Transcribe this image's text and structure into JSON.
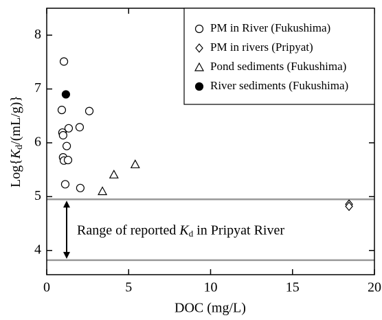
{
  "chart_data": {
    "type": "scatter",
    "x_label": "DOC (mg/L)",
    "y_label": [
      "Log{",
      "K",
      "d",
      "/(mL/g)}"
    ],
    "xlim": [
      0,
      20
    ],
    "xticks": [
      0,
      5,
      10,
      15,
      20
    ],
    "ylim": [
      3.55,
      8.5
    ],
    "yticks": [
      4,
      5,
      6,
      7,
      8
    ],
    "legend": "upper right",
    "series": [
      {
        "name": "PM in River (Fukushima)",
        "marker": "circle",
        "filled": false,
        "color": "#000000",
        "x": [
          1.05,
          0.92,
          2.6,
          0.96,
          1.0,
          1.34,
          2.01,
          1.22,
          1.0,
          1.05,
          1.3,
          1.13,
          2.05
        ],
        "y": [
          7.51,
          6.61,
          6.59,
          6.19,
          6.14,
          6.27,
          6.29,
          5.94,
          5.73,
          5.67,
          5.68,
          5.23,
          5.16
        ]
      },
      {
        "name": "PM in rivers (Pripyat)",
        "marker": "diamond",
        "filled": false,
        "color": "#000000",
        "x": [
          18.45,
          18.45
        ],
        "y": [
          4.86,
          4.82
        ]
      },
      {
        "name": "Pond sediments (Fukushima)",
        "marker": "triangle",
        "filled": false,
        "color": "#000000",
        "x": [
          3.4,
          4.1,
          5.4
        ],
        "y": [
          5.1,
          5.41,
          5.6
        ]
      },
      {
        "name": "River sediments (Fukushima)",
        "marker": "circle",
        "filled": true,
        "color": "#000000",
        "x": [
          1.17
        ],
        "y": [
          6.9
        ]
      }
    ],
    "hlines": [
      4.95,
      3.82
    ],
    "hline_color": "#999999",
    "annotation": [
      "Range of reported ",
      "K",
      "d",
      " in Pripyat River"
    ]
  }
}
